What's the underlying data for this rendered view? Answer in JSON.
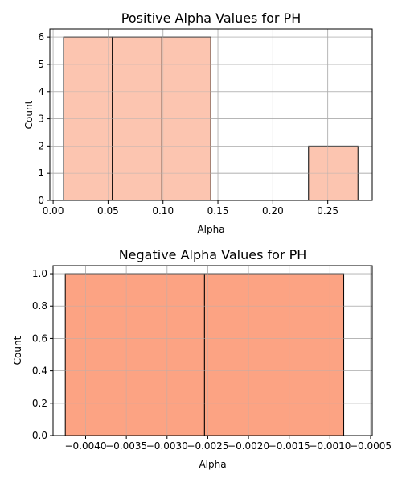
{
  "chart_data": [
    {
      "type": "bar",
      "title": "Positive Alpha Values for PH",
      "xlabel": "Alpha",
      "ylabel": "Count",
      "xlim": [
        -0.003,
        0.2905
      ],
      "ylim": [
        0,
        6.3
      ],
      "xticks": [
        0.0,
        0.05,
        0.1,
        0.15,
        0.2,
        0.25
      ],
      "xtick_labels": [
        "0.00",
        "0.05",
        "0.10",
        "0.15",
        "0.20",
        "0.25"
      ],
      "yticks": [
        0,
        1,
        2,
        3,
        4,
        5,
        6
      ],
      "ytick_labels": [
        "0",
        "1",
        "2",
        "3",
        "4",
        "5",
        "6"
      ],
      "grid": true,
      "bar_color": "#fcc5b0",
      "bins": [
        {
          "x0": 0.0095,
          "x1": 0.0539,
          "count": 6
        },
        {
          "x0": 0.0539,
          "x1": 0.099,
          "count": 6
        },
        {
          "x0": 0.099,
          "x1": 0.1435,
          "count": 6
        },
        {
          "x0": 0.2325,
          "x1": 0.2775,
          "count": 2
        }
      ]
    },
    {
      "type": "bar",
      "title": "Negative Alpha Values for PH",
      "xlabel": "Alpha",
      "ylabel": "Count",
      "xlim": [
        -0.0044,
        -0.00048
      ],
      "ylim": [
        0,
        1.05
      ],
      "xticks": [
        -0.004,
        -0.0035,
        -0.003,
        -0.0025,
        -0.002,
        -0.0015,
        -0.001,
        -0.0005
      ],
      "xtick_labels": [
        "−0.0040",
        "−0.0035",
        "−0.0030",
        "−0.0025",
        "−0.0020",
        "−0.0015",
        "−0.0010",
        "−0.0005"
      ],
      "yticks": [
        0.0,
        0.2,
        0.4,
        0.6,
        0.8,
        1.0
      ],
      "ytick_labels": [
        "0.0",
        "0.2",
        "0.4",
        "0.6",
        "0.8",
        "1.0"
      ],
      "grid": true,
      "bar_color": "#fca383",
      "bins": [
        {
          "x0": -0.00425,
          "x1": -0.00254,
          "count": 1
        },
        {
          "x0": -0.00254,
          "x1": -0.00083,
          "count": 1
        }
      ]
    }
  ]
}
